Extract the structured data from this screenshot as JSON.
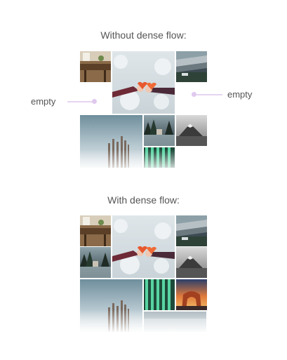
{
  "diagram": {
    "top_heading": "Without dense flow:",
    "bottom_heading": "With dense flow:",
    "callout_left": "empty",
    "callout_right": "empty"
  },
  "colors": {
    "text": "#555555",
    "callout_accent": "#e0c8ef",
    "background": "#ffffff"
  },
  "tiles": [
    "dining-room-photo",
    "snowy-hands-hearts-photo",
    "stadium-race-track-photo",
    "winter-trees-photo",
    "forest-lake-photo",
    "mountain-mist-photo",
    "green-glass-bars-photo",
    "sunset-rock-arch-photo"
  ]
}
